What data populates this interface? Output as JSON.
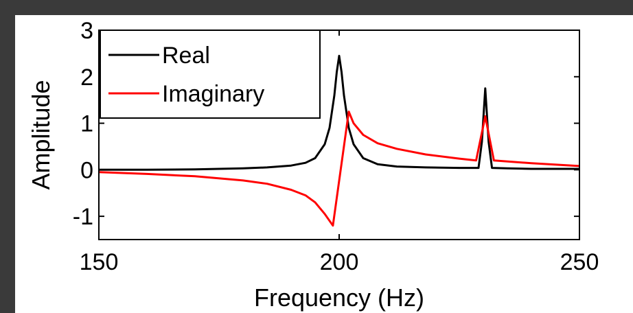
{
  "chart_data": {
    "type": "line",
    "xlabel": "Frequency (Hz)",
    "ylabel": "Amplitude",
    "xlim": [
      150,
      250
    ],
    "ylim": [
      -1.5,
      3
    ],
    "xticks": [
      150,
      200,
      250
    ],
    "yticks": [
      3,
      2,
      1,
      0,
      -1
    ],
    "xtick_labels": [
      "150",
      "200",
      "250"
    ],
    "ytick_labels": [
      "3",
      "2",
      "1",
      "0",
      "-1"
    ],
    "grid": false,
    "legend_position": "top-left",
    "series": [
      {
        "name": "Real",
        "color": "#000000",
        "x": [
          150,
          160,
          170,
          180,
          185,
          190,
          193,
          195,
          197,
          198,
          199,
          199.5,
          200,
          200.5,
          201,
          202,
          203,
          205,
          208,
          212,
          218,
          225,
          229,
          229.7,
          230.4,
          231.1,
          231.8,
          235,
          240,
          250
        ],
        "y": [
          0,
          0,
          0.01,
          0.03,
          0.05,
          0.09,
          0.15,
          0.25,
          0.55,
          0.9,
          1.6,
          2.1,
          2.45,
          2.1,
          1.6,
          0.9,
          0.55,
          0.25,
          0.12,
          0.07,
          0.05,
          0.04,
          0.04,
          0.6,
          1.75,
          0.6,
          0.04,
          0.03,
          0.02,
          0.02
        ]
      },
      {
        "name": "Imaginary",
        "color": "#ff0000",
        "x": [
          150,
          160,
          170,
          180,
          185,
          190,
          193,
          195,
          197,
          198.7,
          202,
          203,
          205,
          208,
          212,
          218,
          225,
          228.5,
          230.4,
          232.2,
          240,
          250
        ],
        "y": [
          -0.05,
          -0.09,
          -0.14,
          -0.23,
          -0.3,
          -0.43,
          -0.55,
          -0.7,
          -0.95,
          -1.2,
          1.25,
          1.0,
          0.75,
          0.57,
          0.45,
          0.33,
          0.24,
          0.2,
          1.15,
          0.2,
          0.14,
          0.08
        ]
      }
    ]
  }
}
